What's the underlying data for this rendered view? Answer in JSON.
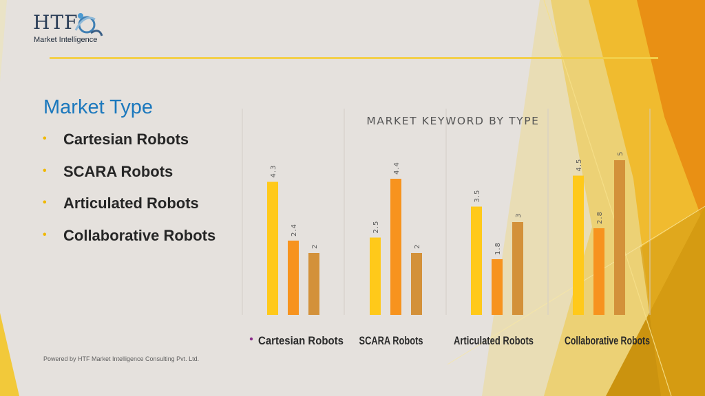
{
  "logo": {
    "mark": "HTF",
    "subtitle": "Market Intelligence"
  },
  "heading": "Market Type",
  "types": [
    "Cartesian Robots",
    "SCARA Robots",
    "Articulated Robots",
    "Collaborative Robots"
  ],
  "footer": "Powered by HTF Market Intelligence Consulting Pvt. Ltd.",
  "colors": {
    "heading": "#1b78bd",
    "bullet": "#f0b800",
    "rule": "#f2cf4a"
  },
  "chart_data": {
    "type": "bar",
    "title": "MARKET KEYWORD BY TYPE",
    "categories": [
      "Cartesian Robots",
      "SCARA Robots",
      "Articulated Robots",
      "Collaborative Robots"
    ],
    "series": [
      {
        "values": [
          4.3,
          2.5,
          3.5,
          4.5
        ],
        "color": "#ffc91a"
      },
      {
        "values": [
          2.4,
          4.4,
          1.8,
          2.8
        ],
        "color": "#f7931e"
      },
      {
        "values": [
          2,
          2,
          3,
          5
        ],
        "color": "#d3913a"
      }
    ],
    "ylim": [
      0,
      5
    ],
    "grid": false,
    "legend": "none"
  }
}
